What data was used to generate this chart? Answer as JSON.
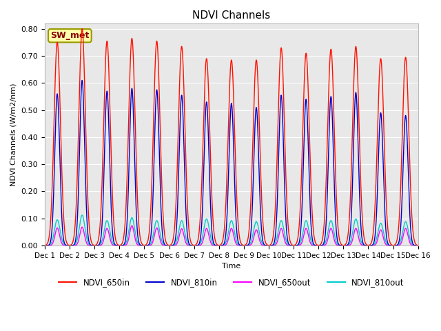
{
  "title": "NDVI Channels",
  "ylabel": "NDVI Channels (W/m2/nm)",
  "xlabel": "Time",
  "n_days": 15,
  "ylim": [
    0.0,
    0.82
  ],
  "yticks": [
    0.0,
    0.1,
    0.2,
    0.3,
    0.4,
    0.5,
    0.6,
    0.7,
    0.8
  ],
  "xtick_labels": [
    "Dec 1",
    "Dec 2",
    "Dec 3",
    "Dec 4",
    "Dec 5",
    "Dec 6",
    "Dec 7",
    "Dec 8",
    "Dec 9",
    "Dec 10",
    "Dec 11",
    "Dec 12",
    "Dec 13",
    "Dec 14",
    "Dec 15",
    "Dec 16"
  ],
  "bg_color": "#e8e8e8",
  "color_650in": "#ff1100",
  "color_810in": "#0000cc",
  "color_650out": "#ff00ff",
  "color_810out": "#00cccc",
  "peak_650in": [
    0.75,
    0.8,
    0.755,
    0.765,
    0.755,
    0.735,
    0.69,
    0.685,
    0.685,
    0.73,
    0.71,
    0.725,
    0.735,
    0.69,
    0.695
  ],
  "peak_810in": [
    0.56,
    0.61,
    0.57,
    0.58,
    0.575,
    0.555,
    0.53,
    0.525,
    0.51,
    0.555,
    0.54,
    0.55,
    0.565,
    0.49,
    0.48
  ],
  "peak_650out": [
    0.065,
    0.068,
    0.063,
    0.073,
    0.065,
    0.062,
    0.063,
    0.063,
    0.058,
    0.063,
    0.063,
    0.063,
    0.063,
    0.058,
    0.063
  ],
  "peak_810out": [
    0.095,
    0.112,
    0.092,
    0.103,
    0.092,
    0.092,
    0.098,
    0.092,
    0.088,
    0.092,
    0.092,
    0.092,
    0.098,
    0.082,
    0.088
  ],
  "sigma_650in": 0.13,
  "sigma_810in": 0.1,
  "sigma_650out": 0.09,
  "sigma_810out": 0.11,
  "label_box_text": "SW_met",
  "label_box_facecolor": "#ffffaa",
  "label_box_edgecolor": "#999900",
  "label_text_color": "#880000",
  "samples_per_day": 480
}
